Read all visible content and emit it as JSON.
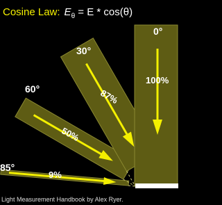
{
  "title": {
    "label": "Cosine Law:",
    "formula_base": "E",
    "formula_sub": "θ",
    "formula_rest": " = E * cos(θ)"
  },
  "beams": [
    {
      "angle": "0°",
      "percent": "100%"
    },
    {
      "angle": "30°",
      "percent": "87%"
    },
    {
      "angle": "60°",
      "percent": "50%"
    },
    {
      "angle": "85°",
      "percent": "9%"
    }
  ],
  "caption": "Light Measurement Handbook by Alex Ryer."
}
